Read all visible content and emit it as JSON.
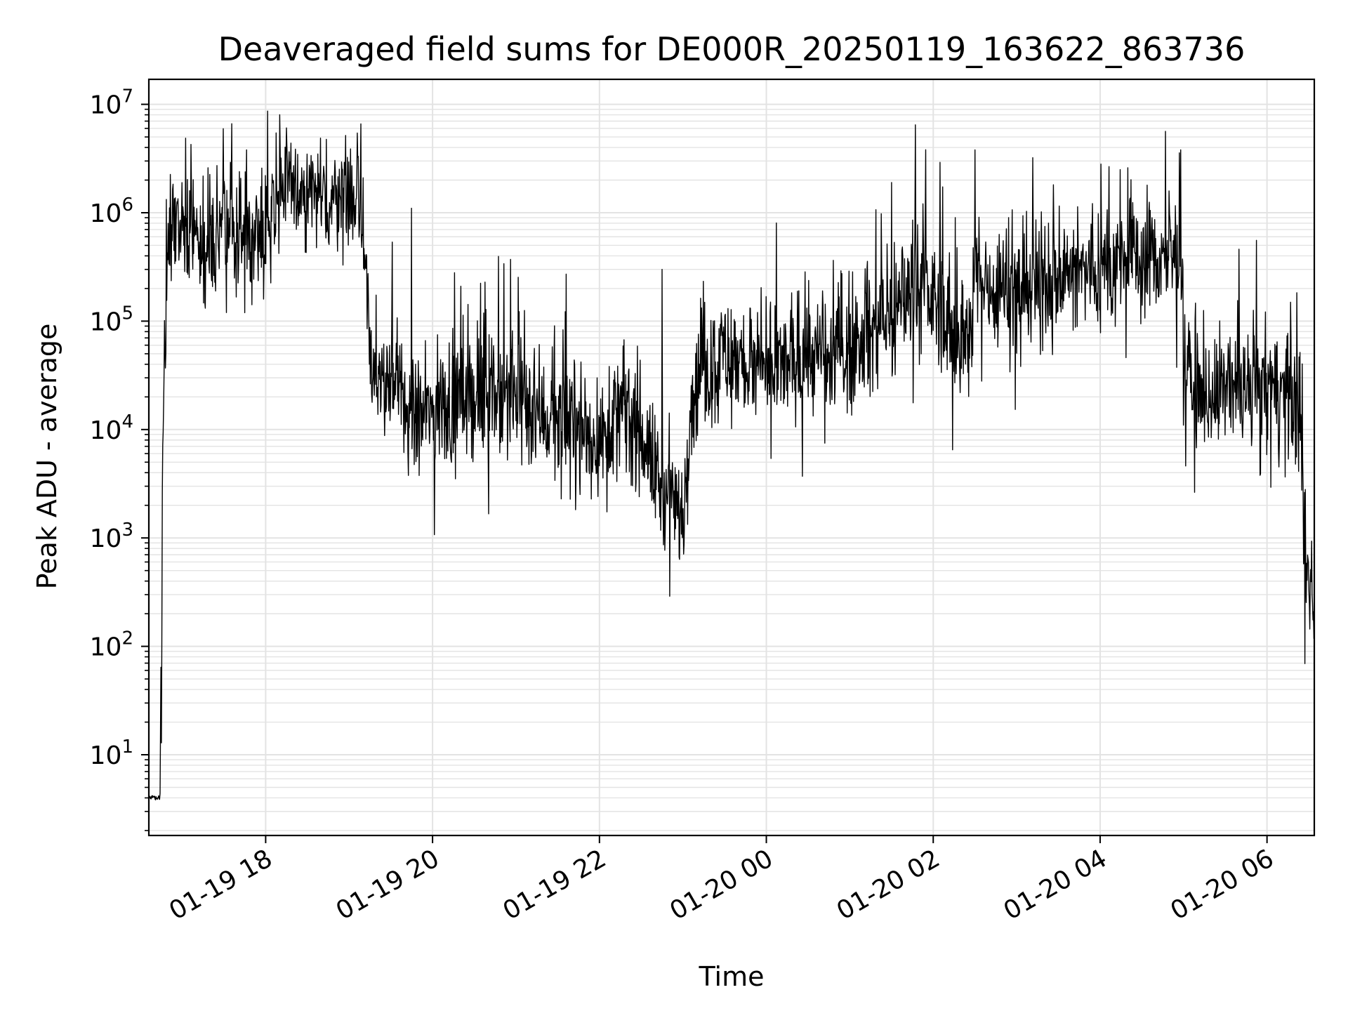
{
  "chart_data": {
    "type": "line",
    "title": "Deaveraged field sums for DE000R_20250119_163622_863736",
    "xlabel": "Time",
    "ylabel": "Peak ADU - average",
    "yscale": "log",
    "ylim": [
      1.8,
      17000000
    ],
    "xlim": [
      "2025-01-19 16:36",
      "2025-01-20 06:34"
    ],
    "grid": "on (major and minor)",
    "line_color": "#000000",
    "grid_color": "#e3e3e3",
    "x_ticks": [
      {
        "label": "01-19 18",
        "t": "2025-01-19 18:00"
      },
      {
        "label": "01-19 20",
        "t": "2025-01-19 20:00"
      },
      {
        "label": "01-19 22",
        "t": "2025-01-19 22:00"
      },
      {
        "label": "01-20 00",
        "t": "2025-01-20 00:00"
      },
      {
        "label": "01-20 02",
        "t": "2025-01-20 02:00"
      },
      {
        "label": "01-20 04",
        "t": "2025-01-20 04:00"
      },
      {
        "label": "01-20 06",
        "t": "2025-01-20 06:00"
      }
    ],
    "y_ticks": [
      {
        "base": "10",
        "exp": "1",
        "value": 10
      },
      {
        "base": "10",
        "exp": "2",
        "value": 100
      },
      {
        "base": "10",
        "exp": "3",
        "value": 1000
      },
      {
        "base": "10",
        "exp": "4",
        "value": 10000
      },
      {
        "base": "10",
        "exp": "5",
        "value": 100000
      },
      {
        "base": "10",
        "exp": "6",
        "value": 1000000
      },
      {
        "base": "10",
        "exp": "7",
        "value": 10000000
      }
    ],
    "series": [
      {
        "x": [
          "2025-01-19 16:36",
          "2025-01-19 16:40",
          "2025-01-19 16:44",
          "2025-01-19 16:45",
          "2025-01-19 16:46",
          "2025-01-19 16:48",
          "2025-01-19 16:50",
          "2025-01-19 16:53",
          "2025-01-19 16:56",
          "2025-01-19 17:00",
          "2025-01-19 17:10",
          "2025-01-19 17:20",
          "2025-01-19 17:30",
          "2025-01-19 17:40",
          "2025-01-19 17:50",
          "2025-01-19 18:00",
          "2025-01-19 18:10",
          "2025-01-19 18:15",
          "2025-01-19 18:20",
          "2025-01-19 18:30",
          "2025-01-19 18:40",
          "2025-01-19 18:50",
          "2025-01-19 19:00",
          "2025-01-19 19:05",
          "2025-01-19 19:10",
          "2025-01-19 19:15",
          "2025-01-19 19:20",
          "2025-01-19 19:30",
          "2025-01-19 19:40",
          "2025-01-19 19:50",
          "2025-01-19 20:00",
          "2025-01-19 20:15",
          "2025-01-19 20:30",
          "2025-01-19 20:45",
          "2025-01-19 21:00",
          "2025-01-19 21:15",
          "2025-01-19 21:30",
          "2025-01-19 21:45",
          "2025-01-19 22:00",
          "2025-01-19 22:15",
          "2025-01-19 22:30",
          "2025-01-19 22:40",
          "2025-01-19 22:50",
          "2025-01-19 23:00",
          "2025-01-19 23:05",
          "2025-01-19 23:10",
          "2025-01-19 23:20",
          "2025-01-19 23:30",
          "2025-01-19 23:45",
          "2025-01-20 00:00",
          "2025-01-20 00:15",
          "2025-01-20 00:30",
          "2025-01-20 00:45",
          "2025-01-20 01:00",
          "2025-01-20 01:15",
          "2025-01-20 01:30",
          "2025-01-20 01:45",
          "2025-01-20 02:00",
          "2025-01-20 02:15",
          "2025-01-20 02:28",
          "2025-01-20 02:30",
          "2025-01-20 02:45",
          "2025-01-20 03:00",
          "2025-01-20 03:15",
          "2025-01-20 03:30",
          "2025-01-20 03:45",
          "2025-01-20 04:00",
          "2025-01-20 04:15",
          "2025-01-20 04:30",
          "2025-01-20 04:45",
          "2025-01-20 04:58",
          "2025-01-20 05:00",
          "2025-01-20 05:05",
          "2025-01-20 05:15",
          "2025-01-20 05:30",
          "2025-01-20 05:45",
          "2025-01-20 06:00",
          "2025-01-20 06:15",
          "2025-01-20 06:24",
          "2025-01-20 06:26",
          "2025-01-20 06:28",
          "2025-01-20 06:30",
          "2025-01-20 06:34"
        ],
        "y": [
          4,
          4,
          4,
          30,
          5000,
          120000,
          600000,
          800000,
          800000,
          700000,
          650000,
          600000,
          620000,
          650000,
          700000,
          800000,
          1500000,
          2000000,
          1700000,
          1500000,
          1400000,
          1500000,
          1500000,
          1300000,
          700000,
          80000,
          20000,
          35000,
          15000,
          12000,
          15000,
          18000,
          20000,
          22000,
          20000,
          15000,
          12000,
          10000,
          8000,
          15000,
          10000,
          4000,
          2000,
          1500,
          15000,
          30000,
          40000,
          50000,
          40000,
          30000,
          40000,
          50000,
          40000,
          60000,
          80000,
          100000,
          250000,
          150000,
          80000,
          60000,
          250000,
          220000,
          200000,
          220000,
          250000,
          280000,
          300000,
          350000,
          400000,
          380000,
          400000,
          60000,
          30000,
          20000,
          25000,
          20000,
          25000,
          20000,
          15000,
          1500,
          600,
          400,
          300
        ],
        "noise_amplitude_decades": 0.35,
        "spikes": [
          {
            "t": "2025-01-19 18:10",
            "y": 8000000
          },
          {
            "t": "2025-01-19 19:45",
            "y": 1100000
          },
          {
            "t": "2025-01-19 22:45",
            "y": 300000
          },
          {
            "t": "2025-01-20 01:30",
            "y": 1900000
          },
          {
            "t": "2025-01-20 02:30",
            "y": 3800000
          },
          {
            "t": "2025-01-20 04:20",
            "y": 2600000
          },
          {
            "t": "2025-01-20 04:58",
            "y": 3800000
          }
        ]
      }
    ]
  }
}
